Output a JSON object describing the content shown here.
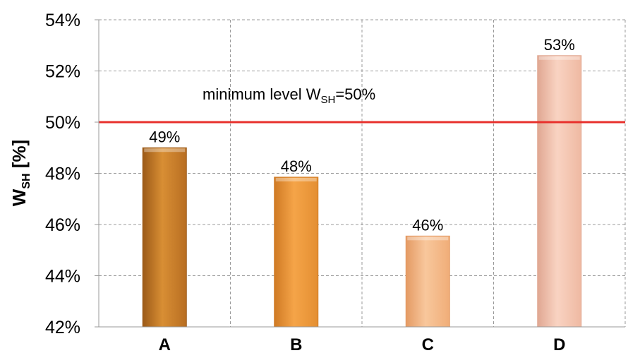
{
  "chart_data": {
    "type": "bar",
    "categories": [
      "A",
      "B",
      "C",
      "D"
    ],
    "values": [
      49.0,
      47.85,
      45.55,
      52.6
    ],
    "data_labels": [
      "49%",
      "48%",
      "46%",
      "53%"
    ],
    "ylim": [
      42,
      54
    ],
    "yticks": [
      42,
      44,
      46,
      48,
      50,
      52,
      54
    ],
    "ytick_labels": [
      "42%",
      "44%",
      "46%",
      "48%",
      "50%",
      "52%",
      "54%"
    ],
    "ylabel": {
      "main": "W",
      "sub": "SH",
      "suffix": " [%]"
    },
    "xlabel": "",
    "grid": "dashed",
    "reference_line": {
      "value": 50,
      "color": "#e8302c",
      "label_prefix": "minimum  level W",
      "label_sub": "SH",
      "label_suffix": "=50%"
    },
    "bar_colors": [
      [
        "#b86e22",
        "#d88e34",
        "#9c5a18"
      ],
      [
        "#e48f32",
        "#f5a448",
        "#cf7a24"
      ],
      [
        "#f0ad78",
        "#f8c79c",
        "#e49a64"
      ],
      [
        "#efb9a2",
        "#f9d3c2",
        "#e0a792"
      ]
    ]
  }
}
